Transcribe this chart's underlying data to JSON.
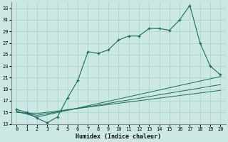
{
  "xlabel": "Humidex (Indice chaleur)",
  "bg_color": "#cce8e4",
  "grid_color": "#aad4ce",
  "line_color": "#1a6b5a",
  "xlim": [
    -0.5,
    20.5
  ],
  "ylim": [
    13,
    34
  ],
  "yticks": [
    13,
    15,
    17,
    19,
    21,
    23,
    25,
    27,
    29,
    31,
    33
  ],
  "xticks": [
    0,
    1,
    2,
    3,
    4,
    5,
    6,
    7,
    8,
    9,
    10,
    11,
    12,
    13,
    14,
    15,
    16,
    17,
    18,
    19,
    20
  ],
  "main_line_x": [
    0,
    1,
    2,
    3,
    4,
    5,
    6,
    7,
    8,
    9,
    10,
    11,
    12,
    13,
    14,
    15,
    16,
    17,
    18,
    19,
    20
  ],
  "main_line_y": [
    15.5,
    15.0,
    14.0,
    13.2,
    14.2,
    17.5,
    20.5,
    25.5,
    25.2,
    25.8,
    27.5,
    28.2,
    28.2,
    29.5,
    29.5,
    29.2,
    31.0,
    33.5,
    27.0,
    23.0,
    21.5
  ],
  "line2_x": [
    0,
    2,
    20
  ],
  "line2_y": [
    15.2,
    14.2,
    21.2
  ],
  "line3_x": [
    0,
    2,
    20
  ],
  "line3_y": [
    15.1,
    14.5,
    19.8
  ],
  "line4_x": [
    0,
    2,
    20
  ],
  "line4_y": [
    15.0,
    14.8,
    18.8
  ]
}
